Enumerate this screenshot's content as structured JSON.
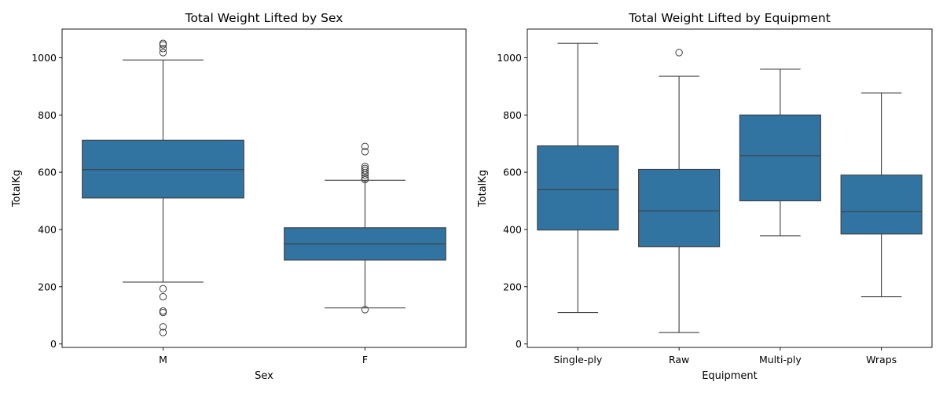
{
  "colors": {
    "box": "#3274a1",
    "line": "#3d3d3d",
    "frame": "#000000"
  },
  "chart_data": [
    {
      "type": "box",
      "title": "Total Weight Lifted by Sex",
      "xlabel": "Sex",
      "ylabel": "TotalKg",
      "ylim": [
        -12,
        1100
      ],
      "yticks": [
        0,
        200,
        400,
        600,
        800,
        1000
      ],
      "categories": [
        "M",
        "F"
      ],
      "boxes": [
        {
          "category": "M",
          "whisker_low": 216,
          "q1": 510,
          "median": 609,
          "q3": 712,
          "whisker_high": 992,
          "outliers": [
            1050,
            1045,
            1032,
            1018,
            193,
            165,
            115,
            110,
            60,
            40
          ]
        },
        {
          "category": "F",
          "whisker_low": 126,
          "q1": 293,
          "median": 350,
          "q3": 406,
          "whisker_high": 572,
          "outliers": [
            690,
            672,
            620,
            613,
            606,
            598,
            590,
            580,
            574,
            120
          ]
        }
      ]
    },
    {
      "type": "box",
      "title": "Total Weight Lifted by Equipment",
      "xlabel": "Equipment",
      "ylabel": "TotalKg",
      "ylim": [
        -12,
        1100
      ],
      "yticks": [
        0,
        200,
        400,
        600,
        800,
        1000
      ],
      "categories": [
        "Single-ply",
        "Raw",
        "Multi-ply",
        "Wraps"
      ],
      "boxes": [
        {
          "category": "Single-ply",
          "whisker_low": 110,
          "q1": 398,
          "median": 539,
          "q3": 692,
          "whisker_high": 1050,
          "outliers": []
        },
        {
          "category": "Raw",
          "whisker_low": 40,
          "q1": 340,
          "median": 465,
          "q3": 610,
          "whisker_high": 935,
          "outliers": [
            1018
          ]
        },
        {
          "category": "Multi-ply",
          "whisker_low": 378,
          "q1": 500,
          "median": 658,
          "q3": 800,
          "whisker_high": 960,
          "outliers": []
        },
        {
          "category": "Wraps",
          "whisker_low": 165,
          "q1": 384,
          "median": 462,
          "q3": 590,
          "whisker_high": 877,
          "outliers": []
        }
      ]
    }
  ]
}
